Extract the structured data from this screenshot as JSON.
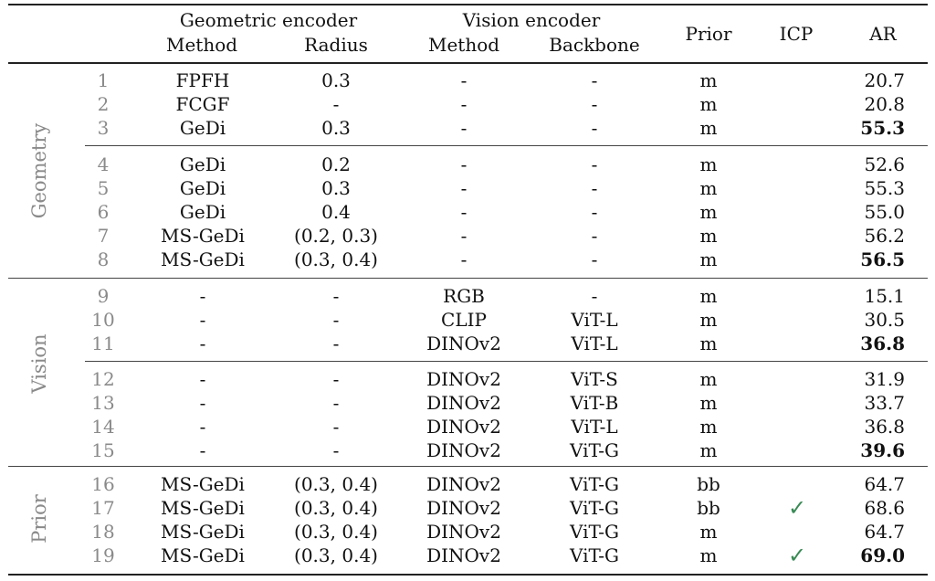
{
  "header": {
    "geometric_encoder": "Geometric encoder",
    "vision_encoder": "Vision encoder",
    "method": "Method",
    "radius": "Radius",
    "vision_method": "Method",
    "backbone": "Backbone",
    "prior": "Prior",
    "icp": "ICP",
    "ar": "AR"
  },
  "groups": [
    {
      "label": "Geometry",
      "rows": [
        0,
        7
      ]
    },
    {
      "label": "Vision",
      "rows": [
        8,
        14
      ]
    },
    {
      "label": "Prior",
      "rows": [
        15,
        18
      ]
    }
  ],
  "check_glyph": "✓",
  "rows": [
    {
      "idx": "1",
      "method": "FPFH",
      "radius": "0.3",
      "vmethod": "-",
      "backbone": "-",
      "prior": "m",
      "icp": "",
      "ar": "20.7",
      "bold": false
    },
    {
      "idx": "2",
      "method": "FCGF",
      "radius": "-",
      "vmethod": "-",
      "backbone": "-",
      "prior": "m",
      "icp": "",
      "ar": "20.8",
      "bold": false
    },
    {
      "idx": "3",
      "method": "GeDi",
      "radius": "0.3",
      "vmethod": "-",
      "backbone": "-",
      "prior": "m",
      "icp": "",
      "ar": "55.3",
      "bold": true
    },
    {
      "idx": "4",
      "method": "GeDi",
      "radius": "0.2",
      "vmethod": "-",
      "backbone": "-",
      "prior": "m",
      "icp": "",
      "ar": "52.6",
      "bold": false
    },
    {
      "idx": "5",
      "method": "GeDi",
      "radius": "0.3",
      "vmethod": "-",
      "backbone": "-",
      "prior": "m",
      "icp": "",
      "ar": "55.3",
      "bold": false
    },
    {
      "idx": "6",
      "method": "GeDi",
      "radius": "0.4",
      "vmethod": "-",
      "backbone": "-",
      "prior": "m",
      "icp": "",
      "ar": "55.0",
      "bold": false
    },
    {
      "idx": "7",
      "method": "MS-GeDi",
      "radius": "(0.2, 0.3)",
      "vmethod": "-",
      "backbone": "-",
      "prior": "m",
      "icp": "",
      "ar": "56.2",
      "bold": false
    },
    {
      "idx": "8",
      "method": "MS-GeDi",
      "radius": "(0.3, 0.4)",
      "vmethod": "-",
      "backbone": "-",
      "prior": "m",
      "icp": "",
      "ar": "56.5",
      "bold": true
    },
    {
      "idx": "9",
      "method": "-",
      "radius": "-",
      "vmethod": "RGB",
      "backbone": "-",
      "prior": "m",
      "icp": "",
      "ar": "15.1",
      "bold": false
    },
    {
      "idx": "10",
      "method": "-",
      "radius": "-",
      "vmethod": "CLIP",
      "backbone": "ViT-L",
      "prior": "m",
      "icp": "",
      "ar": "30.5",
      "bold": false
    },
    {
      "idx": "11",
      "method": "-",
      "radius": "-",
      "vmethod": "DINOv2",
      "backbone": "ViT-L",
      "prior": "m",
      "icp": "",
      "ar": "36.8",
      "bold": true
    },
    {
      "idx": "12",
      "method": "-",
      "radius": "-",
      "vmethod": "DINOv2",
      "backbone": "ViT-S",
      "prior": "m",
      "icp": "",
      "ar": "31.9",
      "bold": false
    },
    {
      "idx": "13",
      "method": "-",
      "radius": "-",
      "vmethod": "DINOv2",
      "backbone": "ViT-B",
      "prior": "m",
      "icp": "",
      "ar": "33.7",
      "bold": false
    },
    {
      "idx": "14",
      "method": "-",
      "radius": "-",
      "vmethod": "DINOv2",
      "backbone": "ViT-L",
      "prior": "m",
      "icp": "",
      "ar": "36.8",
      "bold": false
    },
    {
      "idx": "15",
      "method": "-",
      "radius": "-",
      "vmethod": "DINOv2",
      "backbone": "ViT-G",
      "prior": "m",
      "icp": "",
      "ar": "39.6",
      "bold": true
    },
    {
      "idx": "16",
      "method": "MS-GeDi",
      "radius": "(0.3, 0.4)",
      "vmethod": "DINOv2",
      "backbone": "ViT-G",
      "prior": "bb",
      "icp": "",
      "ar": "64.7",
      "bold": false
    },
    {
      "idx": "17",
      "method": "MS-GeDi",
      "radius": "(0.3, 0.4)",
      "vmethod": "DINOv2",
      "backbone": "ViT-G",
      "prior": "bb",
      "icp": "✓",
      "ar": "68.6",
      "bold": false
    },
    {
      "idx": "18",
      "method": "MS-GeDi",
      "radius": "(0.3, 0.4)",
      "vmethod": "DINOv2",
      "backbone": "ViT-G",
      "prior": "m",
      "icp": "",
      "ar": "64.7",
      "bold": false
    },
    {
      "idx": "19",
      "method": "MS-GeDi",
      "radius": "(0.3, 0.4)",
      "vmethod": "DINOv2",
      "backbone": "ViT-G",
      "prior": "m",
      "icp": "✓",
      "ar": "69.0",
      "bold": true
    }
  ]
}
